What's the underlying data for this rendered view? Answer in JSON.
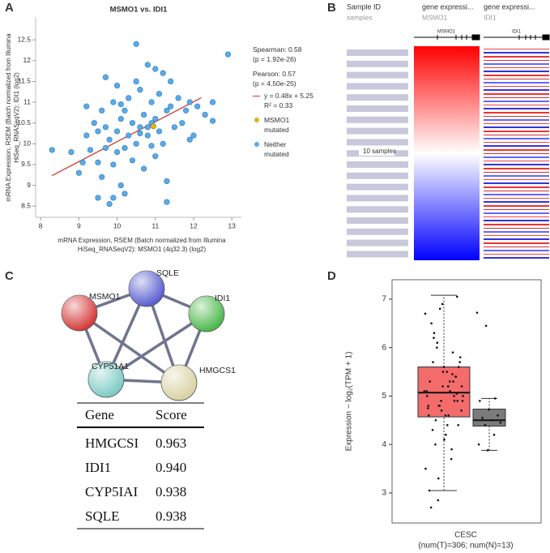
{
  "panel_labels": [
    "A",
    "B",
    "C",
    "D"
  ],
  "chart_data": [
    {
      "type": "scatter",
      "title": "MSMO1 vs. IDI1",
      "x_label": [
        "mRNA Expression, RSEM (Batch normalized from Illumina",
        "HiSeq_RNASeqV2): MSMO1 (4q32.3) (log2)"
      ],
      "y_label": [
        "mRNA Expression, RSEM (Batch normalized from Illumina",
        "HiSeq_RNASeqV2): IDI1 (log2)"
      ],
      "xlim": [
        7.87,
        13.25
      ],
      "ylim": [
        8.23,
        13.03
      ],
      "xticks": [
        8,
        9,
        10,
        11,
        12,
        13
      ],
      "yticks": [
        8.5,
        9,
        9.5,
        10,
        10.5,
        11,
        11.5,
        12,
        12.5
      ],
      "stats": [
        "Spearman: 0.58",
        "(p = 1.92e-26)",
        "Pearson: 0.57",
        "(p = 4.50e-25)"
      ],
      "fit": {
        "label": "y = 0.48x + 5.25",
        "slope": 0.48,
        "intercept": 5.25,
        "color": "#d33b2c",
        "r2_label": "R² = 0.33"
      },
      "series": [
        {
          "name": "MSMO1 mutated",
          "color": "#e0b020",
          "x": [
            10.95
          ],
          "values": [
            10.42
          ]
        },
        {
          "name": "Neither mutated",
          "color": "#5aaae8",
          "x": [
            8.3,
            8.8,
            9.0,
            9.1,
            9.2,
            9.3,
            9.4,
            9.5,
            9.5,
            9.6,
            9.6,
            9.7,
            9.7,
            9.8,
            9.8,
            9.9,
            9.9,
            10.0,
            10.0,
            10.0,
            10.1,
            10.1,
            10.2,
            10.2,
            10.3,
            10.3,
            10.4,
            10.4,
            10.5,
            10.5,
            10.6,
            10.6,
            10.7,
            10.7,
            10.8,
            10.8,
            10.9,
            10.9,
            11.0,
            11.0,
            11.1,
            11.1,
            11.2,
            11.2,
            11.3,
            11.3,
            11.4,
            11.5,
            11.6,
            11.7,
            11.8,
            11.9,
            12.0,
            12.1,
            12.3,
            12.5,
            12.9,
            9.7,
            9.9,
            10.2,
            10.5,
            10.8,
            11.0,
            11.3,
            9.2,
            9.5,
            10.1,
            10.6,
            10.9,
            11.4,
            11.9,
            12.5
          ],
          "values": [
            9.85,
            9.8,
            9.3,
            9.55,
            10.2,
            9.85,
            10.5,
            8.7,
            10.3,
            9.2,
            10.8,
            9.9,
            10.4,
            8.55,
            10.1,
            9.5,
            11.0,
            9.8,
            10.3,
            11.4,
            9.0,
            10.6,
            9.9,
            10.8,
            10.2,
            11.1,
            9.6,
            10.5,
            10.0,
            11.5,
            10.4,
            11.3,
            9.4,
            10.7,
            10.2,
            11.9,
            10.5,
            11.0,
            9.7,
            10.6,
            10.3,
            11.2,
            10.0,
            11.7,
            9.1,
            10.8,
            10.9,
            10.4,
            11.1,
            10.5,
            10.8,
            11.0,
            10.2,
            10.9,
            10.7,
            11.0,
            12.15,
            11.6,
            8.7,
            8.8,
            12.4,
            10.4,
            11.8,
            8.6,
            10.9,
            9.55,
            10.95,
            10.25,
            9.95,
            11.5,
            10.1,
            10.55
          ]
        }
      ]
    },
    {
      "type": "box",
      "y_label": "Expression − log₂(TPM + 1)",
      "x_label": [
        "CESC",
        "(num(T)=306; num(N)=13)"
      ],
      "ylim": [
        2.38,
        7.4
      ],
      "yticks": [
        3,
        4,
        5,
        6,
        7
      ],
      "series": [
        {
          "color": "#f46b6b",
          "whisker_low": 3.05,
          "q1": 4.57,
          "median": 5.07,
          "q3": 5.6,
          "whisker_high": 7.08,
          "points": [
            5.1,
            4.8,
            5.3,
            4.6,
            5.5,
            4.9,
            5.7,
            4.4,
            5.2,
            6.1,
            3.9,
            5.0,
            4.7,
            5.4,
            6.5,
            4.2,
            5.8,
            4.5,
            5.1,
            3.5,
            6.8,
            4.9,
            5.3,
            4.1,
            5.6,
            6.3,
            4.6,
            5.0,
            3.3,
            5.9,
            4.8,
            5.2,
            7.05,
            4.3,
            5.5,
            4.7,
            6.0,
            3.7,
            5.1,
            4.9,
            5.4,
            2.7,
            4.6,
            5.7,
            4.0,
            5.3,
            6.7,
            4.8,
            5.0,
            3.05,
            5.6,
            4.4,
            6.2,
            5.2,
            4.9,
            2.85,
            5.45,
            4.75,
            6.9,
            5.05
          ]
        },
        {
          "color": "#7b7b7b",
          "whisker_low": 3.88,
          "q1": 4.38,
          "median": 4.5,
          "q3": 4.73,
          "whisker_high": 4.95,
          "points": [
            6.72,
            6.45,
            4.95,
            4.9,
            4.72,
            4.6,
            4.55,
            4.5,
            4.45,
            4.4,
            4.2,
            4.0,
            3.88
          ]
        }
      ]
    }
  ],
  "heatmap": {
    "columns": [
      {
        "header": "Sample ID",
        "sub": "samples"
      },
      {
        "header": "gene expressi...",
        "sub": "MSMO1"
      },
      {
        "header": "gene expressi...",
        "sub": "IDI1"
      }
    ],
    "track_labels": [
      "MSMO1",
      "IDI1"
    ],
    "scale_label": "10 samples"
  },
  "network": {
    "nodes": [
      {
        "label": "SQLE",
        "color": "#5a5fcf"
      },
      {
        "label": "MSMO1",
        "color": "#d63a3a"
      },
      {
        "label": "IDI1",
        "color": "#4cb84c"
      },
      {
        "label": "CYP51A1",
        "color": "#7ecbc4"
      },
      {
        "label": "HMGCS1",
        "color": "#d9d2a4"
      }
    ]
  },
  "table": {
    "header": [
      "Gene",
      "Score"
    ],
    "rows": [
      [
        "HMGCSI",
        "0.963"
      ],
      [
        "IDI1",
        "0.940"
      ],
      [
        "CYP5IAI",
        "0.938"
      ],
      [
        "SQLE",
        "0.938"
      ]
    ]
  }
}
